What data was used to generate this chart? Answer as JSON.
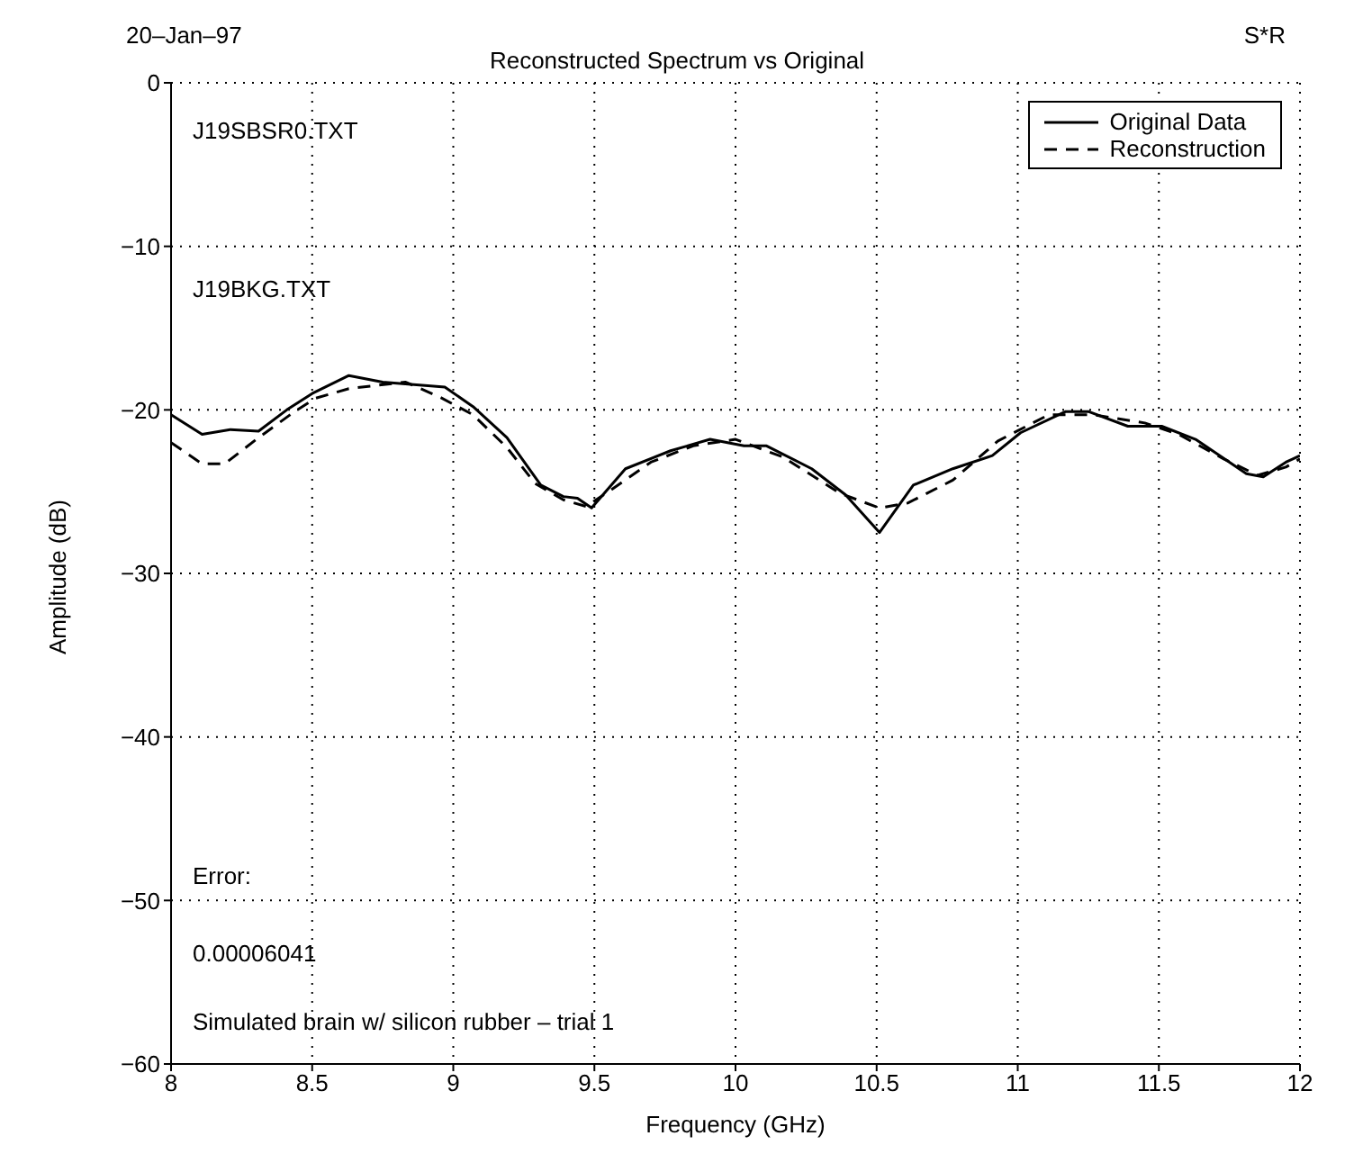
{
  "chart_data": {
    "type": "line",
    "title": "Reconstructed Spectrum vs Original",
    "xlabel": "Frequency (GHz)",
    "ylabel": "Amplitude (dB)",
    "annotations": [
      "20–Jan–97",
      "S*R",
      "J19SBSR0.TXT",
      "J19BKG.TXT",
      "Error:",
      "0.00006041",
      "Simulated brain w/ silicon rubber – trial 1"
    ],
    "xlim": [
      8,
      12
    ],
    "xticks": [
      8,
      8.5,
      9,
      9.5,
      10,
      10.5,
      11,
      11.5,
      12
    ],
    "ylim": [
      -60,
      0
    ],
    "yticks": [
      -60,
      -50,
      -40,
      -30,
      -20,
      -10,
      0
    ],
    "grid": true,
    "legend": "top right",
    "marker": "none",
    "series": [
      {
        "name": "Original Data",
        "color": "#000000",
        "line_style": "solid",
        "x": [
          8,
          8.11,
          8.21,
          8.31,
          8.41,
          8.5,
          8.63,
          8.75,
          8.97,
          9.07,
          9.19,
          9.31,
          9.39,
          9.44,
          9.49,
          9.61,
          9.77,
          9.91,
          10.03,
          10.11,
          10.27,
          10.39,
          10.51,
          10.63,
          10.77,
          10.91,
          11.01,
          11.17,
          11.25,
          11.39,
          11.51,
          11.63,
          11.81,
          11.87,
          11.95,
          12
        ],
        "values": [
          -20.3,
          -21.5,
          -21.2,
          -21.3,
          -20,
          -19,
          -17.9,
          -18.3,
          -18.6,
          -19.8,
          -21.7,
          -24.6,
          -25.3,
          -25.4,
          -26,
          -23.6,
          -22.5,
          -21.8,
          -22.2,
          -22.2,
          -23.6,
          -25.2,
          -27.5,
          -24.6,
          -23.6,
          -22.8,
          -21.4,
          -20.1,
          -20.1,
          -21,
          -21,
          -21.8,
          -23.9,
          -24.1,
          -23.2,
          -22.8
        ]
      },
      {
        "name": "Reconstruction",
        "color": "#000000",
        "line_style": "dashed",
        "x": [
          8,
          8.11,
          8.19,
          8.31,
          8.43,
          8.51,
          8.63,
          8.83,
          8.95,
          9.07,
          9.19,
          9.29,
          9.39,
          9.47,
          9.55,
          9.7,
          9.85,
          10,
          10.17,
          10.37,
          10.51,
          10.61,
          10.77,
          10.93,
          11.11,
          11.27,
          11.45,
          11.57,
          11.73,
          11.85,
          11.95,
          12
        ],
        "values": [
          -22,
          -23.3,
          -23.3,
          -21.7,
          -20.2,
          -19.3,
          -18.7,
          -18.3,
          -19.2,
          -20.3,
          -22.3,
          -24.5,
          -25.5,
          -25.9,
          -25,
          -23.2,
          -22.2,
          -21.8,
          -22.9,
          -25.1,
          -26,
          -25.7,
          -24.3,
          -21.9,
          -20.3,
          -20.3,
          -20.8,
          -21.5,
          -23,
          -24,
          -23.5,
          -23
        ]
      }
    ]
  }
}
